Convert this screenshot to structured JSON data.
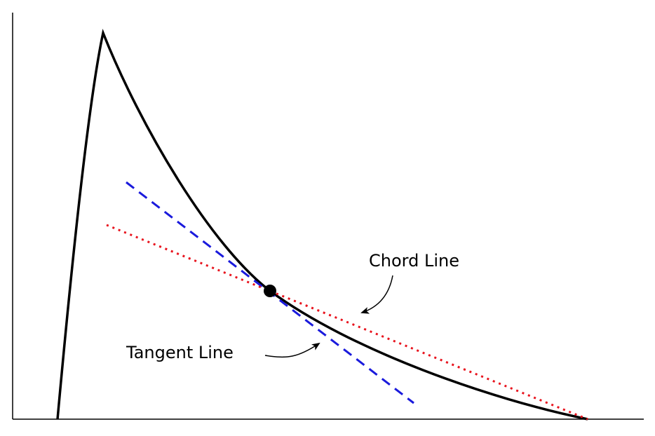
{
  "labels": {
    "chord": "Chord Line",
    "tangent": "Tangent Line"
  }
}
